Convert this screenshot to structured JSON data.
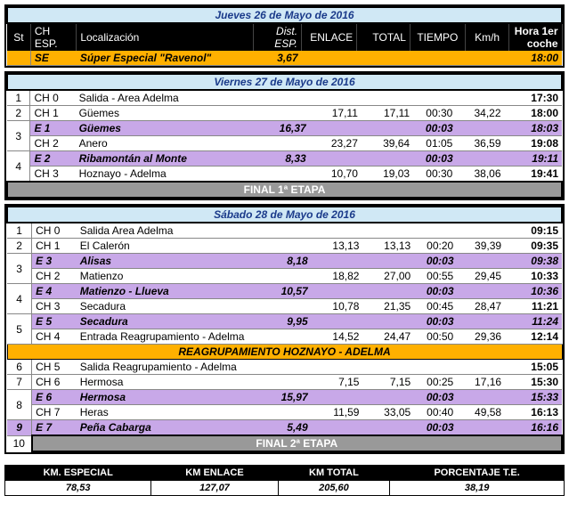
{
  "days": [
    {
      "title": "Jueves  26 de Mayo de 2016",
      "headers": {
        "st": "St",
        "ch": "CH ESP.",
        "loc": "Localización",
        "dist": "Dist. ESP.",
        "enl": "ENLACE",
        "tot": "TOTAL",
        "tmp": "TIEMPO",
        "kmh": "Km/h",
        "hora": "Hora 1er coche"
      },
      "rows": [
        {
          "kind": "se",
          "st": "",
          "ch": "SE",
          "loc": "Súper Especial \"Ravenol\"",
          "dist": "3,67",
          "enl": "",
          "tot": "",
          "tmp": "",
          "kmh": "",
          "hora": "18:00"
        }
      ]
    },
    {
      "title": "Viernes 27 de Mayo de 2016",
      "rows": [
        {
          "kind": "n",
          "st": "1",
          "ch": "CH 0",
          "loc": "Salida  - Area Adelma",
          "dist": "",
          "enl": "",
          "tot": "",
          "tmp": "",
          "kmh": "",
          "hora": "17:30"
        },
        {
          "kind": "n",
          "st": "2",
          "ch": "CH 1",
          "loc": "Güemes",
          "dist": "",
          "enl": "17,11",
          "tot": "17,11",
          "tmp": "00:30",
          "kmh": "34,22",
          "hora": "18:00"
        },
        {
          "kind": "e",
          "st": "3",
          "rowspan": 2,
          "ch": "E 1",
          "loc": "Güemes",
          "dist": "16,37",
          "enl": "",
          "tot": "",
          "tmp": "00:03",
          "kmh": "",
          "hora": "18:03"
        },
        {
          "kind": "n",
          "st": "",
          "ch": "CH 2",
          "loc": "Anero",
          "dist": "",
          "enl": "23,27",
          "tot": "39,64",
          "tmp": "01:05",
          "kmh": "36,59",
          "hora": "19:08"
        },
        {
          "kind": "e",
          "st": "4",
          "rowspan": 2,
          "ch": "E 2",
          "loc": "Ribamontán al Monte",
          "dist": "8,33",
          "enl": "",
          "tot": "",
          "tmp": "00:03",
          "kmh": "",
          "hora": "19:11"
        },
        {
          "kind": "n",
          "st": "",
          "ch": "CH 3",
          "loc": "Hoznayo - Adelma",
          "dist": "",
          "enl": "10,70",
          "tot": "19,03",
          "tmp": "00:30",
          "kmh": "38,06",
          "hora": "19:41"
        }
      ],
      "final": "FINAL 1ª ETAPA"
    },
    {
      "title": "Sábado 28 de Mayo de 2016",
      "rows": [
        {
          "kind": "n",
          "st": "1",
          "ch": "CH 0",
          "loc": "Salida Area Adelma",
          "dist": "",
          "enl": "",
          "tot": "",
          "tmp": "",
          "kmh": "",
          "hora": "09:15"
        },
        {
          "kind": "n",
          "st": "2",
          "ch": "CH 1",
          "loc": "El Calerón",
          "dist": "",
          "enl": "13,13",
          "tot": "13,13",
          "tmp": "00:20",
          "kmh": "39,39",
          "hora": "09:35"
        },
        {
          "kind": "e",
          "st": "3",
          "rowspan": 2,
          "ch": "E 3",
          "loc": "Alisas",
          "dist": "8,18",
          "enl": "",
          "tot": "",
          "tmp": "00:03",
          "kmh": "",
          "hora": "09:38"
        },
        {
          "kind": "n",
          "st": "",
          "ch": "CH 2",
          "loc": "Matienzo",
          "dist": "",
          "enl": "18,82",
          "tot": "27,00",
          "tmp": "00:55",
          "kmh": "29,45",
          "hora": "10:33"
        },
        {
          "kind": "e",
          "st": "4",
          "rowspan": 2,
          "ch": "E 4",
          "loc": "Matienzo - Llueva",
          "dist": "10,57",
          "enl": "",
          "tot": "",
          "tmp": "00:03",
          "kmh": "",
          "hora": "10:36"
        },
        {
          "kind": "n",
          "st": "",
          "ch": "CH 3",
          "loc": "Secadura",
          "dist": "",
          "enl": "10,78",
          "tot": "21,35",
          "tmp": "00:45",
          "kmh": "28,47",
          "hora": "11:21"
        },
        {
          "kind": "e",
          "st": "5",
          "rowspan": 2,
          "ch": "E 5",
          "loc": "Secadura",
          "dist": "9,95",
          "enl": "",
          "tot": "",
          "tmp": "00:03",
          "kmh": "",
          "hora": "11:24"
        },
        {
          "kind": "n",
          "st": "",
          "ch": "CH 4",
          "loc": "Entrada Reagrupamiento - Adelma",
          "dist": "",
          "enl": "14,52",
          "tot": "24,47",
          "tmp": "00:50",
          "kmh": "29,36",
          "hora": "12:14"
        },
        {
          "kind": "reagr",
          "label": "REAGRUPAMIENTO HOZNAYO - ADELMA"
        },
        {
          "kind": "n",
          "st": "6",
          "ch": "CH 5",
          "loc": "Salida Reagrupamiento - Adelma",
          "dist": "",
          "enl": "",
          "tot": "",
          "tmp": "",
          "kmh": "",
          "hora": "15:05"
        },
        {
          "kind": "n",
          "st": "7",
          "ch": "CH 6",
          "loc": "Hermosa",
          "dist": "",
          "enl": "7,15",
          "tot": "7,15",
          "tmp": "00:25",
          "kmh": "17,16",
          "hora": "15:30"
        },
        {
          "kind": "e",
          "st": "8",
          "rowspan": 2,
          "ch": "E 6",
          "loc": "Hermosa",
          "dist": "15,97",
          "enl": "",
          "tot": "",
          "tmp": "00:03",
          "kmh": "",
          "hora": "15:33"
        },
        {
          "kind": "n",
          "st": "",
          "ch": "CH 7",
          "loc": "Heras",
          "dist": "",
          "enl": "11,59",
          "tot": "33,05",
          "tmp": "00:40",
          "kmh": "49,58",
          "hora": "16:13"
        },
        {
          "kind": "e",
          "st": "9",
          "ch": "E 7",
          "loc": "Peña Cabarga",
          "dist": "5,49",
          "enl": "",
          "tot": "",
          "tmp": "00:03",
          "kmh": "",
          "hora": "16:16"
        },
        {
          "kind": "n",
          "st": "10",
          "ch": "",
          "loc": "",
          "dist": "",
          "enl": "",
          "tot": "",
          "tmp": "",
          "kmh": "",
          "hora": ""
        }
      ],
      "final": "FINAL 2ª ETAPA"
    }
  ],
  "summary": {
    "headers": [
      "KM. ESPECIAL",
      "KM ENLACE",
      "KM TOTAL",
      "PORCENTAJE T.E."
    ],
    "values": [
      "78,53",
      "127,07",
      "205,60",
      "38,19"
    ]
  },
  "colors": {
    "day_head": "#d0e8f5",
    "col_head": "#000000",
    "se": "#ffb000",
    "e": "#c8a8e8",
    "final": "#999999"
  }
}
